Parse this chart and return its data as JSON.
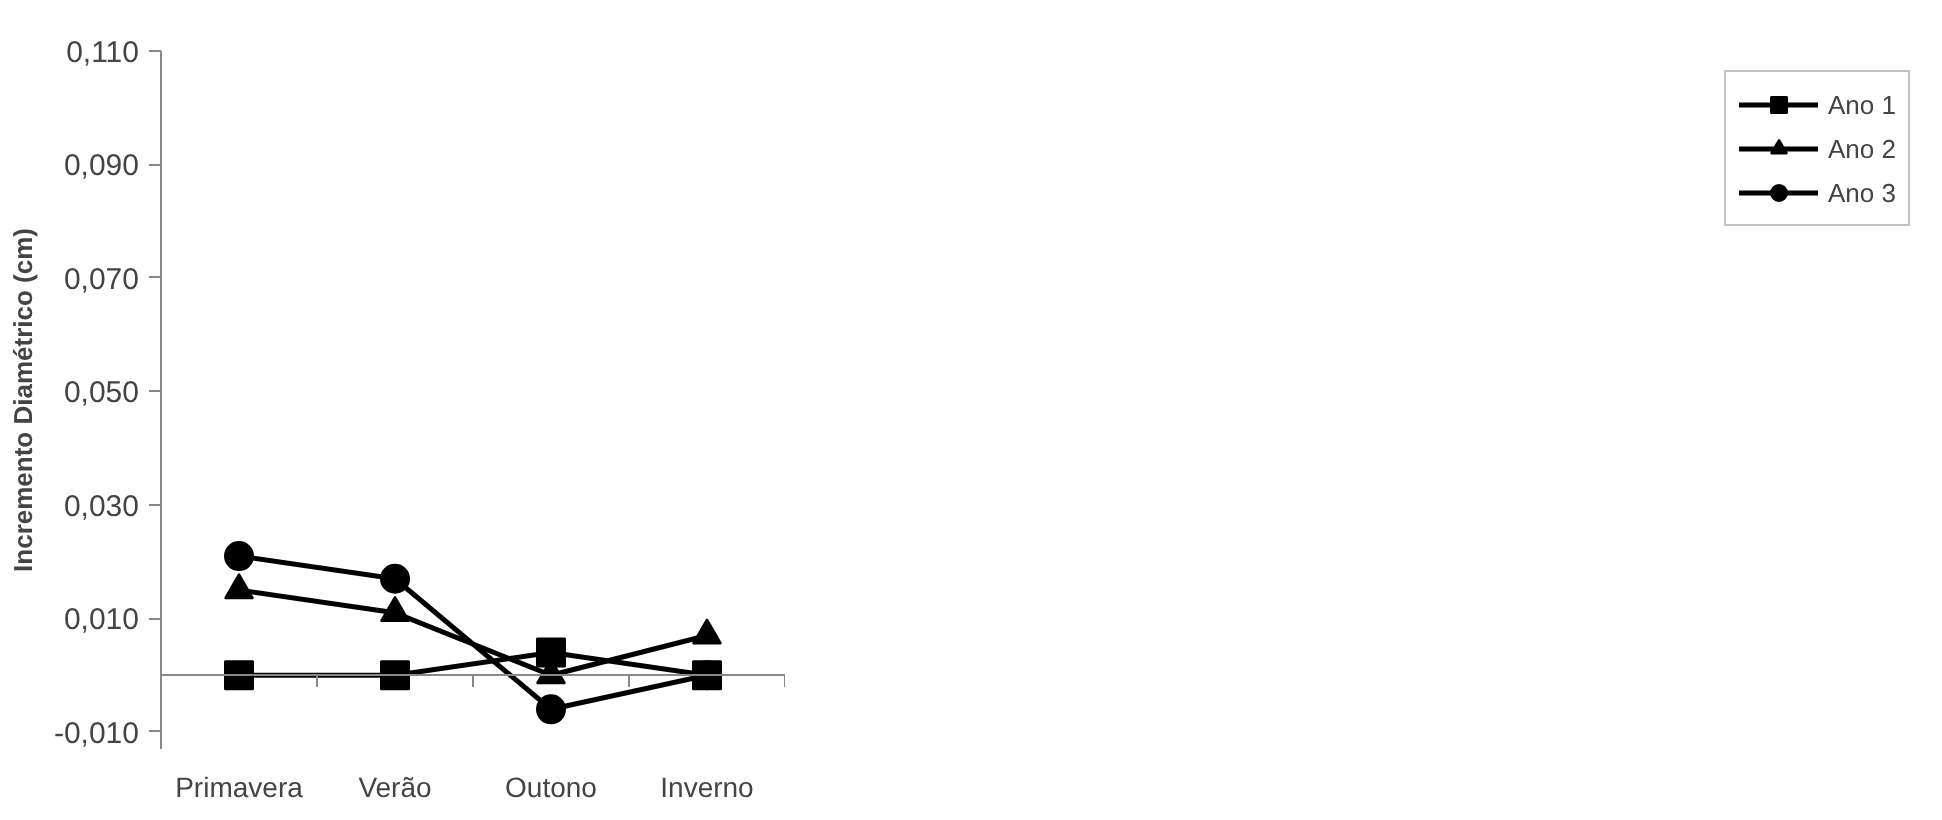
{
  "chart_data": {
    "type": "line",
    "ylabel": "Incremento Diamétrico (cm)",
    "categories": [
      "Primavera",
      "Verão",
      "Outono",
      "Inverno"
    ],
    "series": [
      {
        "name": "Ano 1",
        "color": "#000000",
        "marker": "square",
        "values": [
          0.0,
          0.0,
          0.004,
          0.0
        ]
      },
      {
        "name": "Ano 2",
        "color": "#000000",
        "marker": "triangle",
        "values": [
          0.015,
          0.011,
          0.0,
          0.007
        ]
      },
      {
        "name": "Ano 3",
        "color": "#000000",
        "marker": "circle",
        "values": [
          0.021,
          0.017,
          -0.006,
          0.0
        ]
      }
    ],
    "ylim": [
      -0.013,
      0.11
    ],
    "yticks": [
      {
        "value": -0.01,
        "label": "-0,010"
      },
      {
        "value": 0.01,
        "label": "0,010"
      },
      {
        "value": 0.03,
        "label": "0,030"
      },
      {
        "value": 0.05,
        "label": "0,050"
      },
      {
        "value": 0.07,
        "label": "0,070"
      },
      {
        "value": 0.09,
        "label": "0,090"
      },
      {
        "value": 0.11,
        "label": "0,110"
      }
    ],
    "grid": false,
    "legend": "right",
    "line_style": "solid"
  }
}
